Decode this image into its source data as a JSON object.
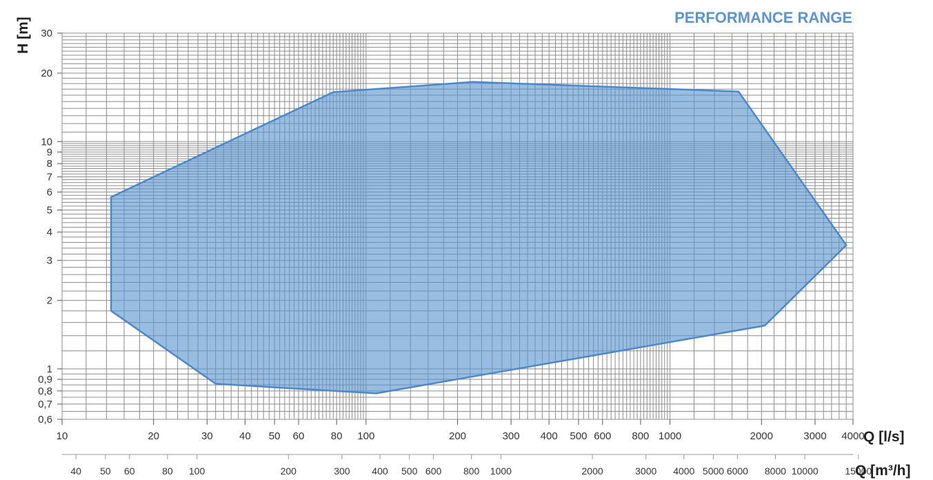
{
  "chart_data": {
    "type": "area",
    "title": "PERFORMANCE RANGE",
    "ylabel": "H [m]",
    "xlabel": "Q [l/s]",
    "x2label": "Q [m³/h]",
    "xscale": "log",
    "yscale": "log",
    "xlim": [
      10,
      4000
    ],
    "ylim": [
      0.6,
      30
    ],
    "grid": true,
    "y_ticks": [
      {
        "v": 0.6,
        "label": "0,6"
      },
      {
        "v": 0.7,
        "label": "0,7"
      },
      {
        "v": 0.8,
        "label": "0,8"
      },
      {
        "v": 0.9,
        "label": "0,9"
      },
      {
        "v": 1,
        "label": "1"
      },
      {
        "v": 2,
        "label": "2"
      },
      {
        "v": 3,
        "label": "3"
      },
      {
        "v": 4,
        "label": "4"
      },
      {
        "v": 5,
        "label": "5"
      },
      {
        "v": 6,
        "label": "6"
      },
      {
        "v": 7,
        "label": "7"
      },
      {
        "v": 8,
        "label": "8"
      },
      {
        "v": 9,
        "label": "9"
      },
      {
        "v": 10,
        "label": "10"
      },
      {
        "v": 20,
        "label": "20"
      },
      {
        "v": 30,
        "label": "30"
      }
    ],
    "x_ticks": [
      {
        "v": 10,
        "label": "10"
      },
      {
        "v": 20,
        "label": "20"
      },
      {
        "v": 30,
        "label": "30"
      },
      {
        "v": 40,
        "label": "40"
      },
      {
        "v": 50,
        "label": "50"
      },
      {
        "v": 60,
        "label": "60"
      },
      {
        "v": 80,
        "label": "80"
      },
      {
        "v": 100,
        "label": "100"
      },
      {
        "v": 200,
        "label": "200"
      },
      {
        "v": 300,
        "label": "300"
      },
      {
        "v": 400,
        "label": "400"
      },
      {
        "v": 500,
        "label": "500"
      },
      {
        "v": 600,
        "label": "600"
      },
      {
        "v": 800,
        "label": "800"
      },
      {
        "v": 1000,
        "label": "1000"
      },
      {
        "v": 2000,
        "label": "2000"
      },
      {
        "v": 3000,
        "label": "3000"
      },
      {
        "v": 4000,
        "label": "4000"
      }
    ],
    "x2_ticks": [
      {
        "v": 40,
        "label": "40"
      },
      {
        "v": 50,
        "label": "50"
      },
      {
        "v": 60,
        "label": "60"
      },
      {
        "v": 80,
        "label": "80"
      },
      {
        "v": 100,
        "label": "100"
      },
      {
        "v": 200,
        "label": "200"
      },
      {
        "v": 300,
        "label": "300"
      },
      {
        "v": 400,
        "label": "400"
      },
      {
        "v": 500,
        "label": "500"
      },
      {
        "v": 600,
        "label": "600"
      },
      {
        "v": 800,
        "label": "800"
      },
      {
        "v": 1000,
        "label": "1000"
      },
      {
        "v": 2000,
        "label": "2000"
      },
      {
        "v": 3000,
        "label": "3000"
      },
      {
        "v": 4000,
        "label": "4000"
      },
      {
        "v": 5000,
        "label": "5000"
      },
      {
        "v": 6000,
        "label": "6000"
      },
      {
        "v": 8000,
        "label": "8000"
      },
      {
        "v": 10000,
        "label": "10000"
      },
      {
        "v": 15000,
        "label": "15000"
      }
    ],
    "region": [
      {
        "q": 14.5,
        "h": 5.7
      },
      {
        "q": 78,
        "h": 16.5
      },
      {
        "q": 225,
        "h": 18.3
      },
      {
        "q": 1680,
        "h": 16.6
      },
      {
        "q": 3800,
        "h": 3.5
      },
      {
        "q": 2050,
        "h": 1.55
      },
      {
        "q": 108,
        "h": 0.78
      },
      {
        "q": 32,
        "h": 0.86
      },
      {
        "q": 14.5,
        "h": 1.8
      }
    ],
    "colors": {
      "fill": "#5b95cf",
      "stroke": "#4a88cc",
      "title": "#5b95cf",
      "grid": "#8c8c8c"
    }
  }
}
